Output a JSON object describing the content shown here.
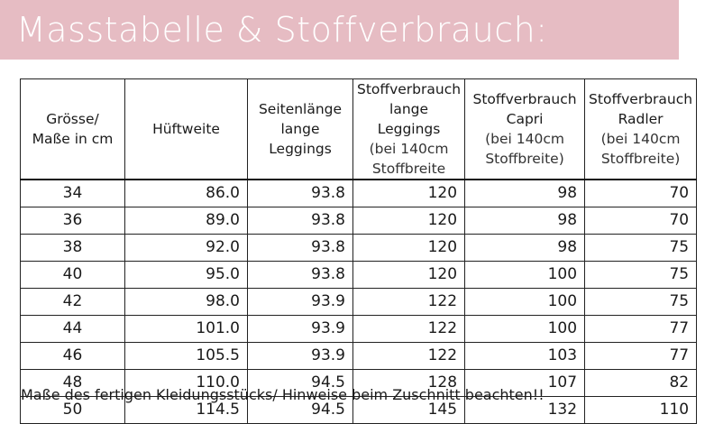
{
  "header": {
    "title": "Masstabelle & Stoffverbrauch:"
  },
  "table": {
    "headers": [
      [
        "Grösse/",
        "Maße in cm"
      ],
      [
        "Hüftweite"
      ],
      [
        "Seitenlänge",
        "lange",
        "Leggings"
      ],
      [
        "Stoffverbrauch",
        "lange Leggings",
        "(bei 140cm",
        "Stoffbreite"
      ],
      [
        "Stoffverbrauch",
        "Capri",
        "(bei 140cm",
        "Stoffbreite)"
      ],
      [
        "Stoffverbrauch",
        "Radler",
        "(bei 140cm",
        "Stoffbreite)"
      ]
    ],
    "rows": [
      [
        "34",
        "86.0",
        "93.8",
        "120",
        "98",
        "70"
      ],
      [
        "36",
        "89.0",
        "93.8",
        "120",
        "98",
        "70"
      ],
      [
        "38",
        "92.0",
        "93.8",
        "120",
        "98",
        "75"
      ],
      [
        "40",
        "95.0",
        "93.8",
        "120",
        "100",
        "75"
      ],
      [
        "42",
        "98.0",
        "93.9",
        "122",
        "100",
        "75"
      ],
      [
        "44",
        "101.0",
        "93.9",
        "122",
        "100",
        "77"
      ],
      [
        "46",
        "105.5",
        "93.9",
        "122",
        "103",
        "77"
      ],
      [
        "48",
        "110.0",
        "94.5",
        "128",
        "107",
        "82"
      ],
      [
        "50",
        "114.5",
        "94.5",
        "145",
        "132",
        "110"
      ]
    ]
  },
  "footnote": "Maße des fertigen Kleidungsstücks/ Hinweise beim Zuschnitt beachten!!",
  "colors": {
    "banner": "#e6bcc3",
    "title": "#ffffff",
    "border": "#222222"
  }
}
